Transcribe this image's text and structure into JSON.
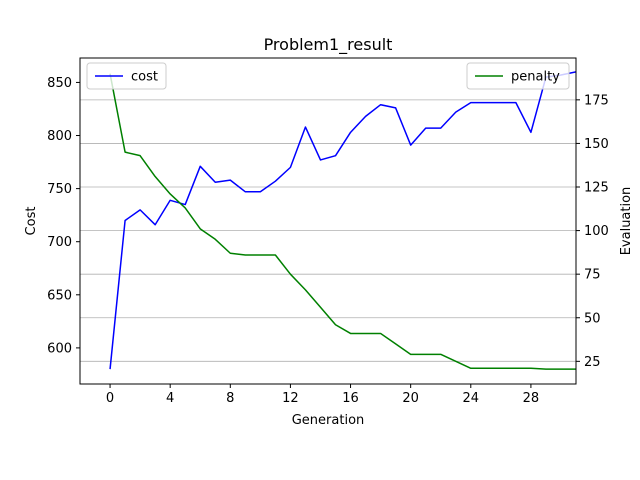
{
  "chart_data": {
    "type": "line",
    "title": "Problem1_result",
    "xlabel": "Generation",
    "ylabel_left": "Cost",
    "ylabel_right": "Evaluation",
    "xlim": [
      -2,
      31
    ],
    "ylim_left": [
      566,
      873
    ],
    "ylim_right": [
      12,
      199
    ],
    "x_ticks": [
      0,
      4,
      8,
      12,
      16,
      20,
      24,
      28
    ],
    "x_tick_labels": [
      "0",
      "4",
      "8",
      "12",
      "16",
      "20",
      "24",
      "28"
    ],
    "y_ticks_left": [
      600,
      650,
      700,
      750,
      800,
      850
    ],
    "y_tick_labels_left": [
      "600",
      "650",
      "700",
      "750",
      "800",
      "850"
    ],
    "y_ticks_right": [
      25,
      50,
      75,
      100,
      125,
      150,
      175
    ],
    "y_tick_labels_right": [
      "25",
      "50",
      "75",
      "100",
      "125",
      "150",
      "175"
    ],
    "grid": "horizontal lines at right-axis ticks",
    "series": [
      {
        "name": "cost",
        "axis": "left",
        "color": "#0000ff",
        "x": [
          0,
          1,
          2,
          3,
          4,
          5,
          6,
          7,
          8,
          9,
          10,
          11,
          12,
          13,
          14,
          15,
          16,
          17,
          18,
          19,
          20,
          21,
          22,
          23,
          24,
          25,
          26,
          27,
          28,
          29,
          30,
          31
        ],
        "values": [
          580,
          720,
          730,
          716,
          739,
          735,
          771,
          756,
          758,
          747,
          747,
          757,
          770,
          808,
          777,
          781,
          803,
          818,
          829,
          826,
          791,
          807,
          807,
          822,
          831,
          831,
          831,
          831,
          803,
          855,
          857,
          860
        ]
      },
      {
        "name": "penalty",
        "axis": "right",
        "color": "#008000",
        "x": [
          0,
          1,
          2,
          3,
          4,
          5,
          6,
          7,
          8,
          9,
          10,
          11,
          12,
          13,
          14,
          15,
          16,
          17,
          18,
          19,
          20,
          21,
          22,
          23,
          24,
          25,
          26,
          27,
          28,
          29,
          30,
          31
        ],
        "values": [
          190,
          145,
          143,
          131,
          121,
          113,
          101,
          95,
          87,
          86,
          86,
          86,
          75,
          66,
          56,
          46,
          41,
          41,
          41,
          35,
          29,
          29,
          29,
          25,
          21,
          21,
          21,
          21,
          21,
          20.5,
          20.5,
          20.5
        ]
      }
    ],
    "legends": [
      {
        "position": "upper-left",
        "entries": [
          "cost"
        ]
      },
      {
        "position": "upper-right",
        "entries": [
          "penalty"
        ]
      }
    ]
  }
}
